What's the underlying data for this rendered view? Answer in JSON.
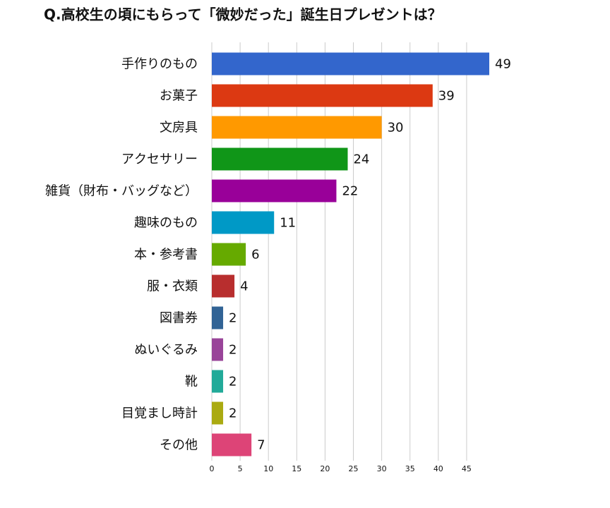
{
  "chart_data": {
    "type": "barh",
    "title": "Q.高校生の頃にもらって「微妙だった」誕生日プレゼントは？",
    "categories": [
      "手作りのもの",
      "お菓子",
      "文房具",
      "アクセサリー",
      "雑貨（財布・バッグなど）",
      "趣味のもの",
      "本・参考書",
      "服・衣類",
      "図書券",
      "ぬいぐるみ",
      "靴",
      "目覚まし時計",
      "その他"
    ],
    "values": [
      49,
      39,
      30,
      24,
      22,
      11,
      6,
      4,
      2,
      2,
      2,
      2,
      7
    ],
    "colors": [
      "#3366cc",
      "#dc3912",
      "#ff9900",
      "#109618",
      "#990099",
      "#0099c6",
      "#66aa00",
      "#b82e2e",
      "#316395",
      "#994499",
      "#22aa99",
      "#aaaa11",
      "#dd4477"
    ],
    "xlim": [
      0,
      49
    ],
    "xticks": [
      0,
      5,
      10,
      15,
      20,
      25,
      30,
      35,
      40,
      45
    ],
    "grid": true
  }
}
